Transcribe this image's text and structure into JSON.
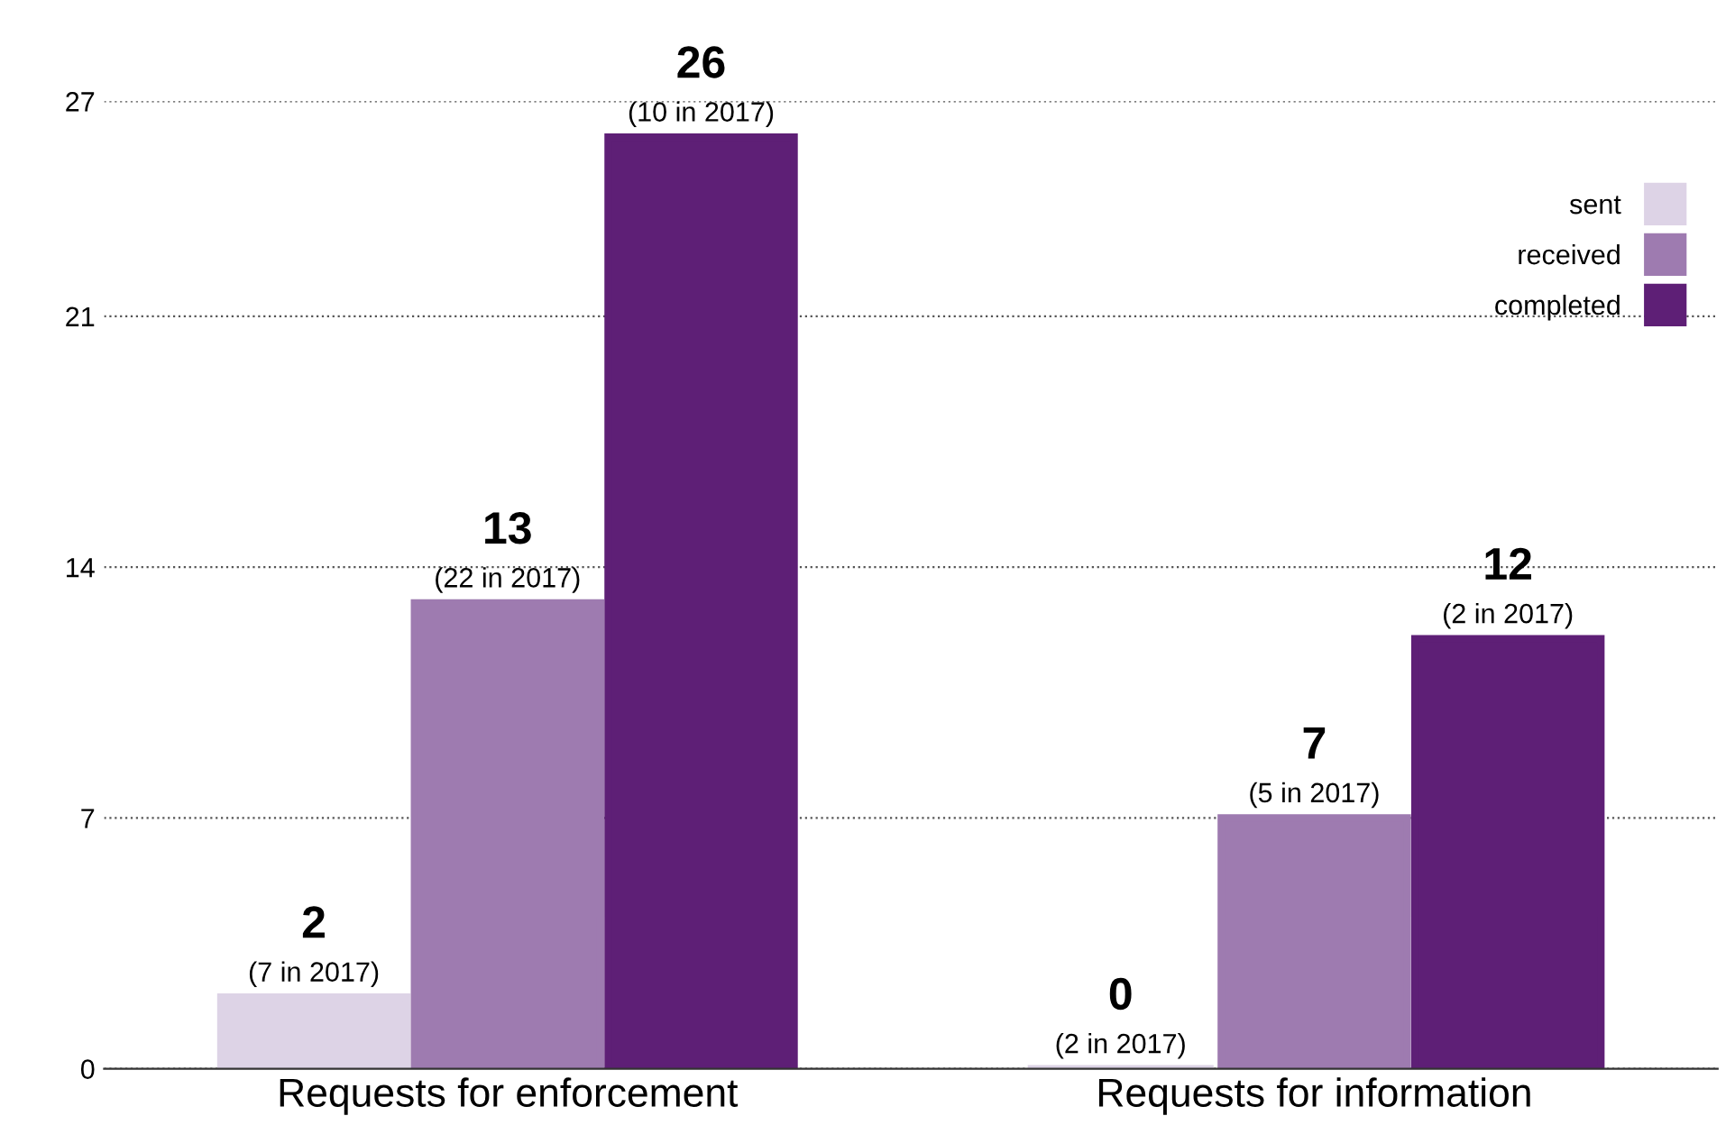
{
  "chart_data": {
    "type": "bar",
    "categories": [
      "Requests for enforcement",
      "Requests for information"
    ],
    "series": [
      {
        "name": "sent",
        "color": "#ddd3e6",
        "values": [
          2,
          0
        ],
        "value_labels": [
          "2\n(7 in 2017)",
          "0\n(2 in 2017)"
        ]
      },
      {
        "name": "received",
        "color": "#9e7bb0",
        "values": [
          13,
          7
        ],
        "value_labels": [
          "13\n(22 in 2017)",
          "7\n(5 in 2017)"
        ]
      },
      {
        "name": "completed",
        "color": "#5e1f76",
        "values": [
          26,
          12
        ],
        "value_labels": [
          "26\n(10 in 2017)",
          "12\n(2 in 2017)"
        ]
      }
    ],
    "ylim": [
      0,
      27
    ],
    "yticks": [
      0,
      7,
      14,
      21,
      27
    ],
    "grid": "y",
    "legend": "top right",
    "marker": "square"
  }
}
